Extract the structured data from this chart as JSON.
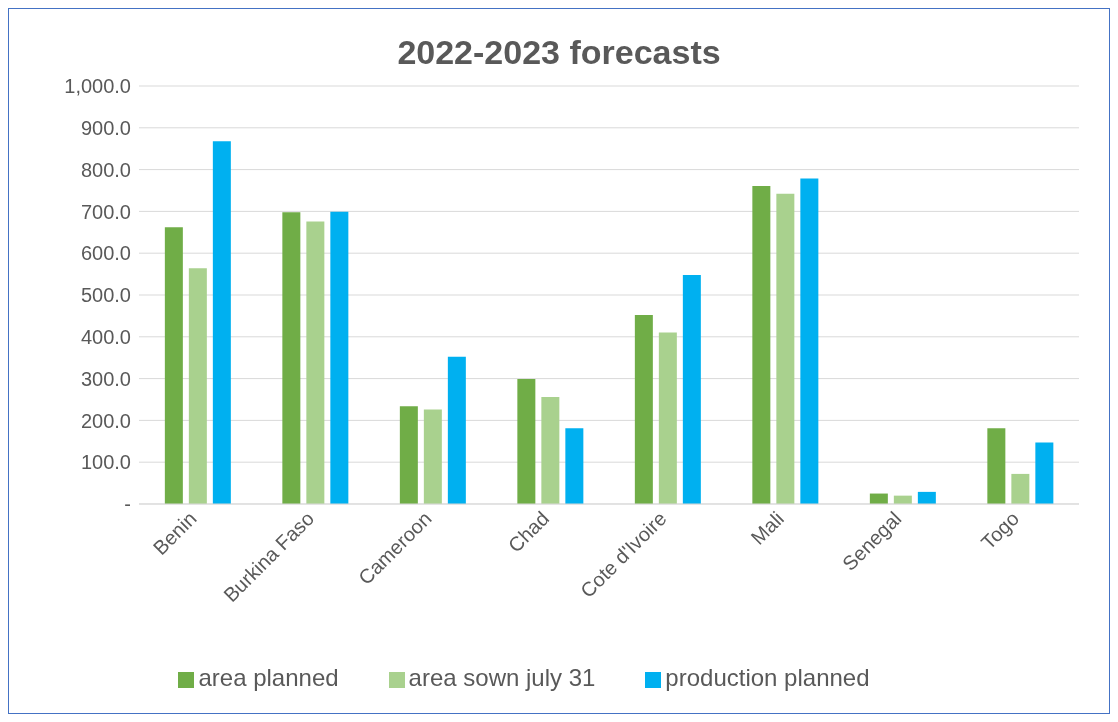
{
  "chart_data": {
    "type": "bar",
    "title": "2022-2023 forecasts",
    "categories": [
      "Benin",
      "Burkina Faso",
      "Cameroon",
      "Chad",
      "Cote d'Ivoire",
      "Mali",
      "Senegal",
      "Togo"
    ],
    "series": [
      {
        "name": "area planned",
        "color": "#70ad47",
        "values": [
          662,
          698,
          234,
          299,
          452,
          761,
          25,
          181
        ]
      },
      {
        "name": "area sown july 31",
        "color": "#a9d18e",
        "values": [
          564,
          676,
          226,
          256,
          410,
          742,
          20,
          72
        ]
      },
      {
        "name": "production planned",
        "color": "#00b0f0",
        "values": [
          868,
          699,
          352,
          181,
          548,
          779,
          29,
          147
        ]
      }
    ],
    "ylim": [
      0,
      1000
    ],
    "yticks": [
      {
        "value": 0,
        "label": "-"
      },
      {
        "value": 100,
        "label": "100.0"
      },
      {
        "value": 200,
        "label": "200.0"
      },
      {
        "value": 300,
        "label": "300.0"
      },
      {
        "value": 400,
        "label": "400.0"
      },
      {
        "value": 500,
        "label": "500.0"
      },
      {
        "value": 600,
        "label": "600.0"
      },
      {
        "value": 700,
        "label": "700.0"
      },
      {
        "value": 800,
        "label": "800.0"
      },
      {
        "value": 900,
        "label": "900.0"
      },
      {
        "value": 1000,
        "label": "1,000.0"
      }
    ],
    "grid": "y",
    "legend": "bottom"
  }
}
